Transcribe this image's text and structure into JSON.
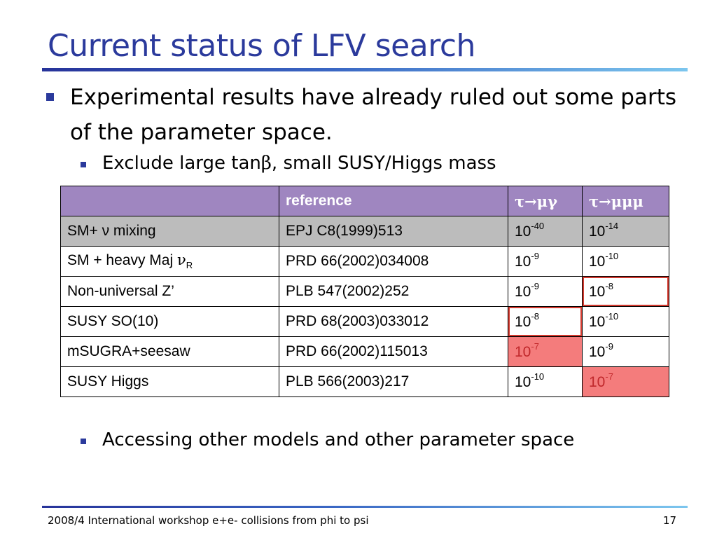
{
  "slide": {
    "title": "Current status of LFV search",
    "bullet1": "Experimental results have already ruled out some parts of the parameter space.",
    "bullet2_prefix": "Exclude large tan",
    "bullet2_greek": "β",
    "bullet2_suffix": ", small SUSY/Higgs mass",
    "bullet3": "Accessing other models and other parameter space"
  },
  "table": {
    "headers": [
      "",
      "reference",
      "τ→μγ",
      "τ→μμμ"
    ],
    "rows": [
      {
        "model": "SM+ ν mixing",
        "ref": "EPJ C8(1999)513",
        "mg_base": "10",
        "mg_exp": "-40",
        "mmm_base": "10",
        "mmm_exp": "-14"
      },
      {
        "model_prefix": "SM + heavy Maj ",
        "model_greek": "ν",
        "model_sub": "R",
        "ref": "PRD 66(2002)034008",
        "mg_base": "10",
        "mg_exp": "-9",
        "mmm_base": "10",
        "mmm_exp": "-10"
      },
      {
        "model": "Non-universal Z’",
        "ref": "PLB 547(2002)252",
        "mg_base": "10",
        "mg_exp": "-9",
        "mmm_base": "10",
        "mmm_exp": "-8"
      },
      {
        "model": "SUSY SO(10)",
        "ref": "PRD 68(2003)033012",
        "mg_base": "10",
        "mg_exp": "-8",
        "mmm_base": "10",
        "mmm_exp": "-10"
      },
      {
        "model": "mSUGRA+seesaw",
        "ref": "PRD 66(2002)115013",
        "mg_base": "10",
        "mg_exp": "-7",
        "mmm_base": "10",
        "mmm_exp": "-9"
      },
      {
        "model": "SUSY Higgs",
        "ref": "PLB 566(2003)217",
        "mg_base": "10",
        "mg_exp": "-10",
        "mmm_base": "10",
        "mmm_exp": "-7"
      }
    ]
  },
  "footer": {
    "text": "2008/4 International workshop e+e- collisions from phi to psi",
    "page": "17"
  },
  "colors": {
    "title": "#2b3a9c",
    "header_bg": "#9f86c0",
    "shade_row": "#bcbcbc",
    "highlight_fill": "#f47c7c",
    "highlight_border": "#d33a2f"
  }
}
